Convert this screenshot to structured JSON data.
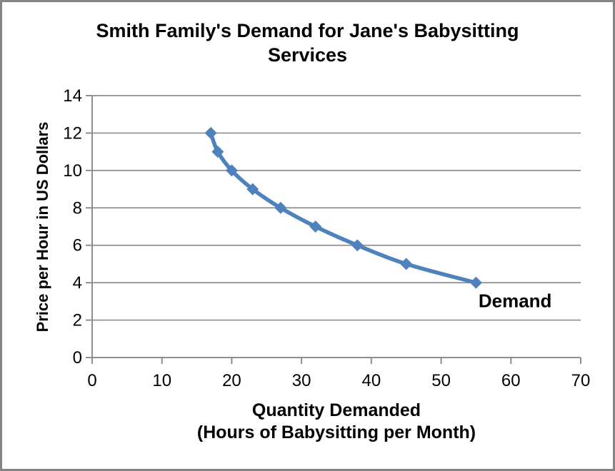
{
  "window": {
    "background": "#FFFFFF",
    "border_color": "#848484"
  },
  "chart_data": {
    "type": "line",
    "title": "Smith Family's Demand for Jane's Babysitting\nServices",
    "xlabel": "Quantity Demanded\n(Hours of Babysitting per Month)",
    "ylabel": "Price per Hour in US Dollars",
    "xlim": [
      0,
      70
    ],
    "ylim": [
      0,
      14
    ],
    "xticks": [
      0,
      10,
      20,
      30,
      40,
      50,
      60,
      70
    ],
    "yticks": [
      0,
      2,
      4,
      6,
      8,
      10,
      12,
      14
    ],
    "grid": "horizontal",
    "grid_color": "#8E8E8E",
    "axis_color": "#8E8E8E",
    "tick_label_color": "#000000",
    "legend": "none",
    "series": [
      {
        "name": "Demand",
        "color": "#4F81BD",
        "marker": "diamond",
        "smooth": true,
        "points": [
          {
            "x": 17,
            "y": 12
          },
          {
            "x": 18,
            "y": 11
          },
          {
            "x": 20,
            "y": 10
          },
          {
            "x": 23,
            "y": 9
          },
          {
            "x": 27,
            "y": 8
          },
          {
            "x": 32,
            "y": 7
          },
          {
            "x": 38,
            "y": 6
          },
          {
            "x": 45,
            "y": 5
          },
          {
            "x": 55,
            "y": 4
          }
        ]
      }
    ],
    "annotation": {
      "text": "Demand",
      "x": 60.6,
      "y": 3.0
    }
  }
}
